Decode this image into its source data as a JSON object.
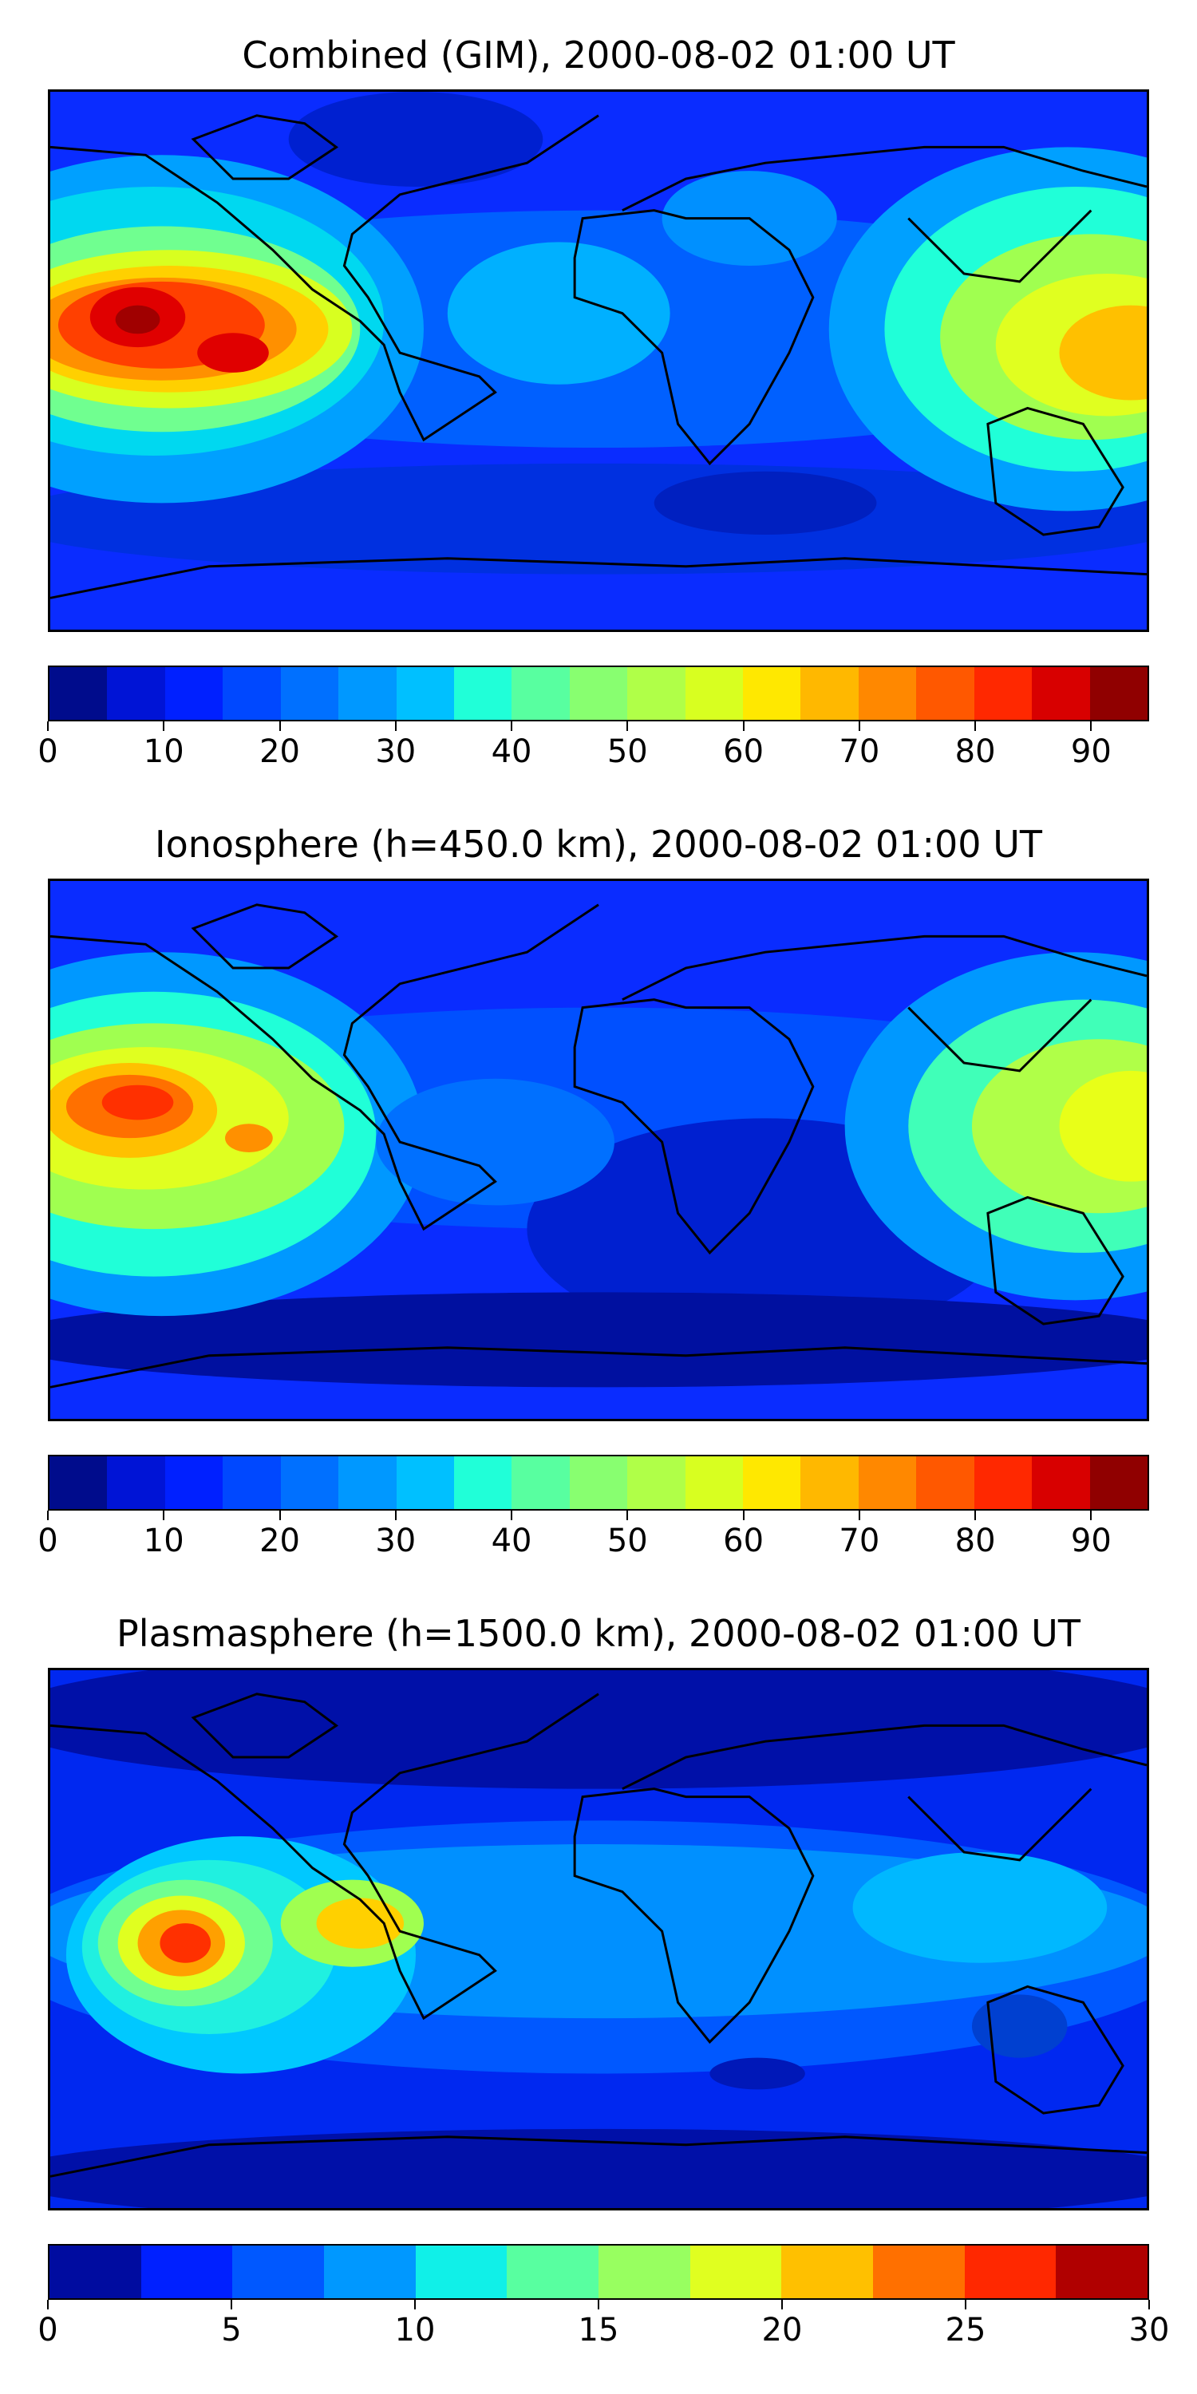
{
  "panels": [
    {
      "title": "Combined (GIM), 2000-08-02 01:00 UT",
      "colorbar": {
        "min": 0,
        "max": 95,
        "ticks": [
          "0",
          "10",
          "20",
          "30",
          "40",
          "50",
          "60",
          "70",
          "80",
          "90"
        ],
        "tick_values": [
          0,
          10,
          20,
          30,
          40,
          50,
          60,
          70,
          80,
          90
        ],
        "colors": [
          "#000c8c",
          "#0014d6",
          "#0020ff",
          "#0048ff",
          "#0070ff",
          "#0098ff",
          "#00c0ff",
          "#20ffd8",
          "#58ffa0",
          "#88ff70",
          "#b0ff48",
          "#d8ff20",
          "#ffe800",
          "#ffb800",
          "#ff8800",
          "#ff5800",
          "#ff2800",
          "#d80000",
          "#900000"
        ]
      },
      "color_scale": "jet"
    },
    {
      "title": "Ionosphere  (h=450.0 km), 2000-08-02 01:00 UT",
      "colorbar": {
        "min": 0,
        "max": 95,
        "ticks": [
          "0",
          "10",
          "20",
          "30",
          "40",
          "50",
          "60",
          "70",
          "80",
          "90"
        ],
        "tick_values": [
          0,
          10,
          20,
          30,
          40,
          50,
          60,
          70,
          80,
          90
        ],
        "colors": [
          "#000c8c",
          "#0014d6",
          "#0020ff",
          "#0048ff",
          "#0070ff",
          "#0098ff",
          "#00c0ff",
          "#20ffd8",
          "#58ffa0",
          "#88ff70",
          "#b0ff48",
          "#d8ff20",
          "#ffe800",
          "#ffb800",
          "#ff8800",
          "#ff5800",
          "#ff2800",
          "#d80000",
          "#900000"
        ]
      },
      "color_scale": "jet"
    },
    {
      "title": "Plasmasphere (h=1500.0 km), 2000-08-02 01:00 UT",
      "colorbar": {
        "min": 0,
        "max": 30,
        "ticks": [
          "0",
          "5",
          "10",
          "15",
          "20",
          "25",
          "30"
        ],
        "tick_values": [
          0,
          5,
          10,
          15,
          20,
          25,
          30
        ],
        "colors": [
          "#000ca0",
          "#0020ff",
          "#0058ff",
          "#0098ff",
          "#10f0e8",
          "#58ffa0",
          "#98ff60",
          "#e0ff20",
          "#ffc000",
          "#ff7000",
          "#ff2800",
          "#b00000"
        ]
      },
      "color_scale": "jet"
    }
  ]
}
